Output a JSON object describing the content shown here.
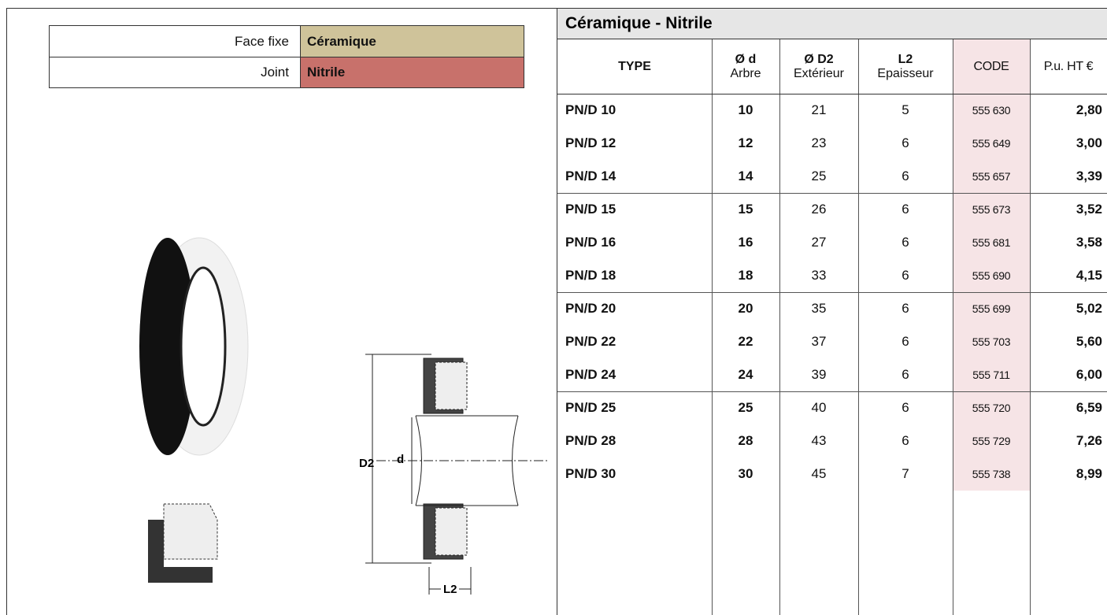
{
  "spec": {
    "rows": [
      [
        "Face fixe",
        "Céramique"
      ],
      [
        "Joint",
        "Nitrile"
      ]
    ]
  },
  "table": {
    "title": "Céramique - Nitrile",
    "headers": [
      [
        "TYPE"
      ],
      [
        "Ø d",
        "Arbre"
      ],
      [
        "Ø D2",
        "Extérieur"
      ],
      [
        "L2",
        "Epaisseur"
      ],
      [
        "CODE"
      ],
      [
        "P.u. HT €"
      ]
    ],
    "rows": [
      [
        "PN/D 10",
        "10",
        "21",
        "5",
        "555 630",
        "2,80"
      ],
      [
        "PN/D 12",
        "12",
        "23",
        "6",
        "555 649",
        "3,00"
      ],
      [
        "PN/D 14",
        "14",
        "25",
        "6",
        "555 657",
        "3,39"
      ],
      [
        "PN/D 15",
        "15",
        "26",
        "6",
        "555 673",
        "3,52"
      ],
      [
        "PN/D 16",
        "16",
        "27",
        "6",
        "555 681",
        "3,58"
      ],
      [
        "PN/D 18",
        "18",
        "33",
        "6",
        "555 690",
        "4,15"
      ],
      [
        "PN/D 20",
        "20",
        "35",
        "6",
        "555 699",
        "5,02"
      ],
      [
        "PN/D 22",
        "22",
        "37",
        "6",
        "555 703",
        "5,60"
      ],
      [
        "PN/D 24",
        "24",
        "39",
        "6",
        "555 711",
        "6,00"
      ],
      [
        "PN/D 25",
        "25",
        "40",
        "6",
        "555 720",
        "6,59"
      ],
      [
        "PN/D 28",
        "28",
        "43",
        "6",
        "555 729",
        "7,26"
      ],
      [
        "PN/D 30",
        "30",
        "45",
        "7",
        "555 738",
        "8,99"
      ]
    ]
  },
  "diagram": {
    "labels": [
      "D2",
      "d",
      "L2"
    ]
  }
}
